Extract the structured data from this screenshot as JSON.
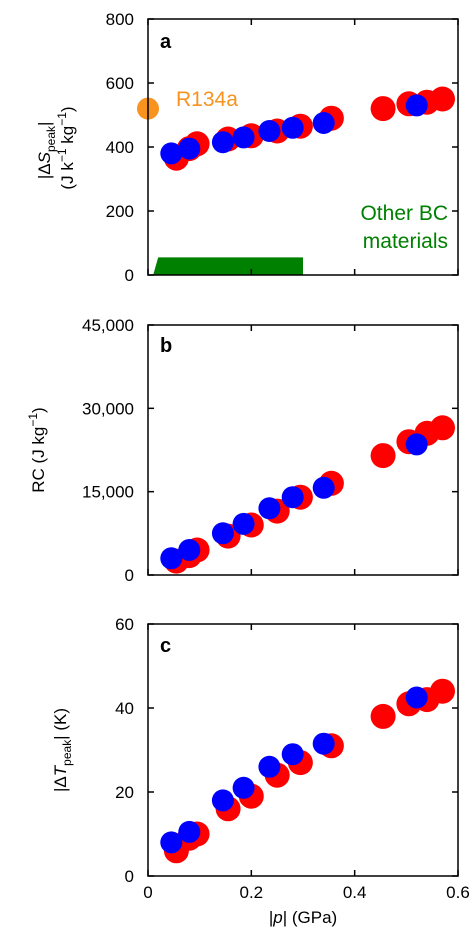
{
  "chart_data": [
    {
      "panel": "a",
      "type": "scatter",
      "ylabel_parts": [
        "|Δ",
        "S",
        "peak",
        "|",
        "(J k",
        "−1",
        " kg",
        "−1",
        ")"
      ],
      "xlim": [
        0,
        0.6
      ],
      "ylim": [
        0,
        800
      ],
      "yticks": [
        "0",
        "200",
        "400",
        "600",
        "800"
      ],
      "series": [
        {
          "color": "#ff0000",
          "x": [
            0.055,
            0.08,
            0.095,
            0.155,
            0.2,
            0.25,
            0.295,
            0.355,
            0.455,
            0.505,
            0.54,
            0.57
          ],
          "y": [
            365,
            395,
            410,
            425,
            435,
            450,
            465,
            490,
            520,
            535,
            540,
            550
          ]
        },
        {
          "color": "#0000ff",
          "x": [
            0.045,
            0.08,
            0.145,
            0.185,
            0.235,
            0.28,
            0.34,
            0.52
          ],
          "y": [
            380,
            395,
            415,
            430,
            450,
            460,
            475,
            530
          ]
        }
      ],
      "annotations": [
        {
          "label": "R134a",
          "color": "#f7931e",
          "x": 0.0,
          "y": 520
        },
        {
          "label_lines": [
            "Other BC",
            "materials"
          ],
          "color": "#008000",
          "x_range": [
            0.01,
            0.3
          ],
          "y_range": [
            0,
            55
          ]
        }
      ]
    },
    {
      "panel": "b",
      "type": "scatter",
      "ylabel_parts": [
        "RC (J kg",
        "−1",
        ")"
      ],
      "xlim": [
        0,
        0.6
      ],
      "ylim": [
        0,
        45000
      ],
      "yticks": [
        "0",
        "15,000",
        "30,000",
        "45,000"
      ],
      "series": [
        {
          "color": "#ff0000",
          "x": [
            0.055,
            0.08,
            0.095,
            0.155,
            0.2,
            0.25,
            0.295,
            0.355,
            0.455,
            0.505,
            0.54,
            0.57
          ],
          "y": [
            2500,
            3500,
            4500,
            7000,
            9000,
            11500,
            14000,
            16500,
            21500,
            24000,
            25500,
            26500
          ]
        },
        {
          "color": "#0000ff",
          "x": [
            0.045,
            0.08,
            0.145,
            0.185,
            0.235,
            0.28,
            0.34,
            0.52
          ],
          "y": [
            3000,
            4500,
            7500,
            9200,
            12000,
            14000,
            15700,
            23500
          ]
        }
      ]
    },
    {
      "panel": "c",
      "type": "scatter",
      "xlabel_parts": [
        "|",
        "p",
        "| (GPa)"
      ],
      "ylabel_parts": [
        "|Δ",
        "T",
        "peak",
        "| (K)"
      ],
      "xlim": [
        0,
        0.6
      ],
      "ylim": [
        0,
        60
      ],
      "xticks": [
        "0",
        "0.2",
        "0.4",
        "0.6"
      ],
      "yticks": [
        "0",
        "20",
        "40",
        "60"
      ],
      "series": [
        {
          "color": "#ff0000",
          "x": [
            0.055,
            0.08,
            0.095,
            0.155,
            0.2,
            0.25,
            0.295,
            0.355,
            0.455,
            0.505,
            0.54,
            0.57
          ],
          "y": [
            6,
            9,
            10,
            16,
            19,
            24,
            27,
            31,
            38,
            41,
            42,
            44
          ]
        },
        {
          "color": "#0000ff",
          "x": [
            0.045,
            0.08,
            0.145,
            0.185,
            0.235,
            0.28,
            0.34,
            0.52
          ],
          "y": [
            8,
            10.5,
            18,
            21,
            26,
            29,
            31.5,
            42.5
          ]
        }
      ]
    }
  ]
}
